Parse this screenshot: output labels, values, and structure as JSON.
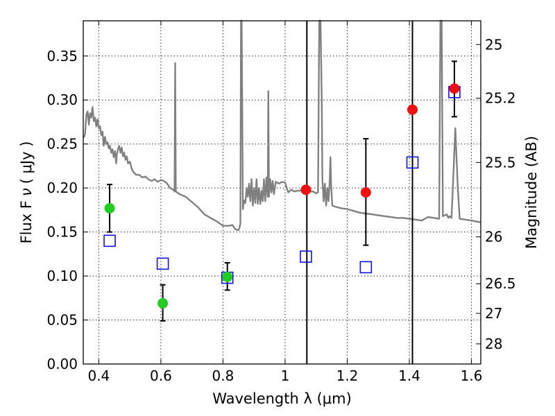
{
  "chart_data": {
    "type": "scatter",
    "xlabel": "Wavelength  λ (μm)",
    "ylabel": "Flux  F",
    "ylabel_sub": "ν",
    "ylabel_unit": "( μJy )",
    "y2label": "Magnitude (AB)",
    "xlim": [
      0.35,
      1.63
    ],
    "ylim": [
      0.0,
      0.39
    ],
    "grid": true,
    "x_ticks": [
      0.4,
      0.6,
      0.8,
      1.0,
      1.2,
      1.4,
      1.6
    ],
    "x_tick_labels": [
      "0.4",
      "0.6",
      "0.8",
      "1",
      "1.2",
      "1.4",
      "1.6"
    ],
    "y_ticks": [
      0.0,
      0.05,
      0.1,
      0.15,
      0.2,
      0.25,
      0.3,
      0.35
    ],
    "y_tick_labels": [
      "0.00",
      "0.05",
      "0.10",
      "0.15",
      "0.20",
      "0.25",
      "0.30",
      "0.35"
    ],
    "y2_ticks": [
      {
        "label": "25",
        "flux": 0.363
      },
      {
        "label": "25.2",
        "flux": 0.302
      },
      {
        "label": "25.5",
        "flux": 0.229
      },
      {
        "label": "26",
        "flux": 0.1445
      },
      {
        "label": "26.5",
        "flux": 0.0912
      },
      {
        "label": "27",
        "flux": 0.0575
      },
      {
        "label": "28",
        "flux": 0.0229
      }
    ],
    "vertical_lines": [
      1.07,
      1.41
    ],
    "series": [
      {
        "kind": "points",
        "color": "#22cc22",
        "points": [
          {
            "x": 0.435,
            "y": 0.177,
            "err_low": 0.15,
            "err_high": 0.204
          },
          {
            "x": 0.606,
            "y": 0.069,
            "err_low": 0.049,
            "err_high": 0.09
          },
          {
            "x": 0.814,
            "y": 0.099,
            "err_low": 0.084,
            "err_high": 0.115
          }
        ]
      },
      {
        "kind": "points",
        "color": "#ee1111",
        "points": [
          {
            "x": 1.067,
            "y": 0.198
          },
          {
            "x": 1.26,
            "y": 0.195,
            "err_low": 0.135,
            "err_high": 0.256
          },
          {
            "x": 1.41,
            "y": 0.289
          },
          {
            "x": 1.545,
            "y": 0.313,
            "err_low": 0.281,
            "err_high": 0.344
          }
        ]
      },
      {
        "kind": "squares",
        "color": "#1111dd",
        "points": [
          {
            "x": 0.435,
            "y": 0.14
          },
          {
            "x": 0.606,
            "y": 0.114
          },
          {
            "x": 0.814,
            "y": 0.098
          },
          {
            "x": 1.067,
            "y": 0.122
          },
          {
            "x": 1.26,
            "y": 0.11
          },
          {
            "x": 1.41,
            "y": 0.229
          },
          {
            "x": 1.545,
            "y": 0.309
          }
        ]
      },
      {
        "kind": "spectrum",
        "color": "#808080",
        "points": [
          [
            0.352,
            0.257
          ],
          [
            0.356,
            0.262
          ],
          [
            0.36,
            0.283
          ],
          [
            0.364,
            0.287
          ],
          [
            0.368,
            0.272
          ],
          [
            0.372,
            0.285
          ],
          [
            0.376,
            0.28
          ],
          [
            0.38,
            0.292
          ],
          [
            0.384,
            0.276
          ],
          [
            0.388,
            0.28
          ],
          [
            0.392,
            0.27
          ],
          [
            0.396,
            0.278
          ],
          [
            0.4,
            0.268
          ],
          [
            0.404,
            0.27
          ],
          [
            0.408,
            0.26
          ],
          [
            0.412,
            0.264
          ],
          [
            0.416,
            0.248
          ],
          [
            0.42,
            0.258
          ],
          [
            0.424,
            0.25
          ],
          [
            0.428,
            0.252
          ],
          [
            0.432,
            0.245
          ],
          [
            0.436,
            0.248
          ],
          [
            0.44,
            0.24
          ],
          [
            0.444,
            0.244
          ],
          [
            0.448,
            0.235
          ],
          [
            0.452,
            0.242
          ],
          [
            0.456,
            0.228
          ],
          [
            0.458,
            0.238
          ],
          [
            0.462,
            0.244
          ],
          [
            0.466,
            0.248
          ],
          [
            0.47,
            0.24
          ],
          [
            0.474,
            0.246
          ],
          [
            0.478,
            0.236
          ],
          [
            0.482,
            0.24
          ],
          [
            0.486,
            0.232
          ],
          [
            0.49,
            0.236
          ],
          [
            0.494,
            0.228
          ],
          [
            0.5,
            0.23
          ],
          [
            0.506,
            0.222
          ],
          [
            0.512,
            0.218
          ],
          [
            0.52,
            0.215
          ],
          [
            0.53,
            0.215
          ],
          [
            0.54,
            0.212
          ],
          [
            0.55,
            0.213
          ],
          [
            0.56,
            0.21
          ],
          [
            0.57,
            0.208
          ],
          [
            0.58,
            0.21
          ],
          [
            0.59,
            0.207
          ],
          [
            0.6,
            0.209
          ],
          [
            0.61,
            0.208
          ],
          [
            0.62,
            0.205
          ],
          [
            0.63,
            0.2
          ],
          [
            0.64,
            0.198
          ],
          [
            0.644,
            0.196
          ],
          [
            0.646,
            0.342
          ],
          [
            0.648,
            0.196
          ],
          [
            0.66,
            0.193
          ],
          [
            0.68,
            0.19
          ],
          [
            0.7,
            0.184
          ],
          [
            0.72,
            0.178
          ],
          [
            0.74,
            0.17
          ],
          [
            0.76,
            0.166
          ],
          [
            0.78,
            0.162
          ],
          [
            0.8,
            0.157
          ],
          [
            0.82,
            0.157
          ],
          [
            0.83,
            0.158
          ],
          [
            0.84,
            0.153
          ],
          [
            0.85,
            0.152
          ],
          [
            0.854,
            0.156
          ],
          [
            0.856,
            0.16
          ],
          [
            0.858,
            0.39
          ],
          [
            0.86,
            0.392
          ],
          [
            0.862,
            0.29
          ],
          [
            0.864,
            0.176
          ],
          [
            0.868,
            0.186
          ],
          [
            0.872,
            0.183
          ],
          [
            0.876,
            0.2
          ],
          [
            0.88,
            0.19
          ],
          [
            0.884,
            0.205
          ],
          [
            0.888,
            0.185
          ],
          [
            0.892,
            0.21
          ],
          [
            0.896,
            0.18
          ],
          [
            0.9,
            0.2
          ],
          [
            0.904,
            0.183
          ],
          [
            0.908,
            0.21
          ],
          [
            0.912,
            0.182
          ],
          [
            0.916,
            0.2
          ],
          [
            0.92,
            0.182
          ],
          [
            0.924,
            0.197
          ],
          [
            0.928,
            0.185
          ],
          [
            0.932,
            0.21
          ],
          [
            0.936,
            0.185
          ],
          [
            0.94,
            0.212
          ],
          [
            0.944,
            0.19
          ],
          [
            0.946,
            0.31
          ],
          [
            0.948,
            0.19
          ],
          [
            0.952,
            0.21
          ],
          [
            0.956,
            0.195
          ],
          [
            0.96,
            0.208
          ],
          [
            0.964,
            0.193
          ],
          [
            0.97,
            0.207
          ],
          [
            0.98,
            0.205
          ],
          [
            0.99,
            0.207
          ],
          [
            1.0,
            0.206
          ],
          [
            1.01,
            0.195
          ],
          [
            1.02,
            0.198
          ],
          [
            1.03,
            0.196
          ],
          [
            1.04,
            0.197
          ],
          [
            1.05,
            0.197
          ],
          [
            1.06,
            0.199
          ],
          [
            1.07,
            0.197
          ],
          [
            1.08,
            0.196
          ],
          [
            1.09,
            0.196
          ],
          [
            1.1,
            0.194
          ],
          [
            1.106,
            0.195
          ],
          [
            1.11,
            0.39
          ],
          [
            1.114,
            0.392
          ],
          [
            1.118,
            0.3
          ],
          [
            1.12,
            0.21
          ],
          [
            1.124,
            0.185
          ],
          [
            1.128,
            0.205
          ],
          [
            1.132,
            0.18
          ],
          [
            1.136,
            0.2
          ],
          [
            1.14,
            0.185
          ],
          [
            1.144,
            0.21
          ],
          [
            1.146,
            0.235
          ],
          [
            1.148,
            0.205
          ],
          [
            1.152,
            0.18
          ],
          [
            1.16,
            0.179
          ],
          [
            1.18,
            0.177
          ],
          [
            1.2,
            0.176
          ],
          [
            1.22,
            0.174
          ],
          [
            1.24,
            0.172
          ],
          [
            1.26,
            0.171
          ],
          [
            1.28,
            0.17
          ],
          [
            1.3,
            0.169
          ],
          [
            1.32,
            0.168
          ],
          [
            1.34,
            0.167
          ],
          [
            1.36,
            0.166
          ],
          [
            1.38,
            0.166
          ],
          [
            1.4,
            0.165
          ],
          [
            1.42,
            0.164
          ],
          [
            1.44,
            0.163
          ],
          [
            1.46,
            0.167
          ],
          [
            1.48,
            0.166
          ],
          [
            1.496,
            0.165
          ],
          [
            1.5,
            0.392
          ],
          [
            1.504,
            0.39
          ],
          [
            1.508,
            0.168
          ],
          [
            1.52,
            0.17
          ],
          [
            1.526,
            0.166
          ],
          [
            1.53,
            0.168
          ],
          [
            1.536,
            0.166
          ],
          [
            1.54,
            0.2
          ],
          [
            1.548,
            0.268
          ],
          [
            1.556,
            0.2
          ],
          [
            1.562,
            0.165
          ],
          [
            1.58,
            0.164
          ],
          [
            1.6,
            0.163
          ],
          [
            1.615,
            0.162
          ],
          [
            1.63,
            0.161
          ]
        ]
      }
    ]
  }
}
